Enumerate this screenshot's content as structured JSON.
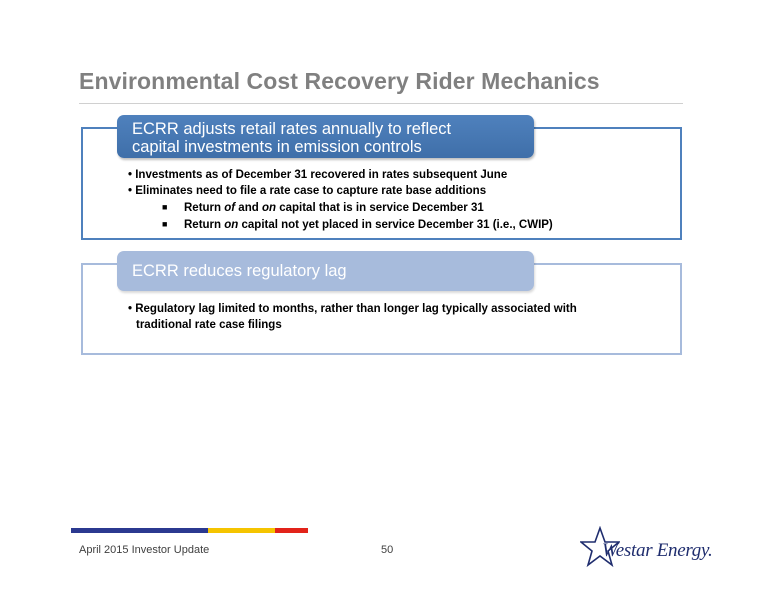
{
  "title": "Environmental Cost Recovery Rider Mechanics",
  "section1": {
    "heading_line1": "ECRR adjusts retail rates annually to reflect",
    "heading_line2": "capital investments in emission controls",
    "bullets": [
      "Investments as of December 31 recovered in rates subsequent June",
      "Eliminates need to file a rate case to capture rate base additions"
    ],
    "sub1": {
      "a": "Return ",
      "b": "of",
      "c": " and ",
      "d": "on",
      "e": " capital that is in service December 31"
    },
    "sub2": {
      "a": "Return ",
      "b": "on",
      "c": " capital not yet placed in service December 31 (i.e., CWIP)"
    }
  },
  "section2": {
    "heading": "ECRR reduces regulatory lag",
    "bullet_line1": "Regulatory lag limited to months, rather than longer lag typically associated with",
    "bullet_line2": "traditional rate case filings"
  },
  "footer": {
    "left": "April 2015 Investor Update",
    "page": "50",
    "logo_text": "Westar Energy.",
    "colors": {
      "blue": "#2b3990",
      "yellow": "#f5c400",
      "red": "#e2231a"
    }
  }
}
